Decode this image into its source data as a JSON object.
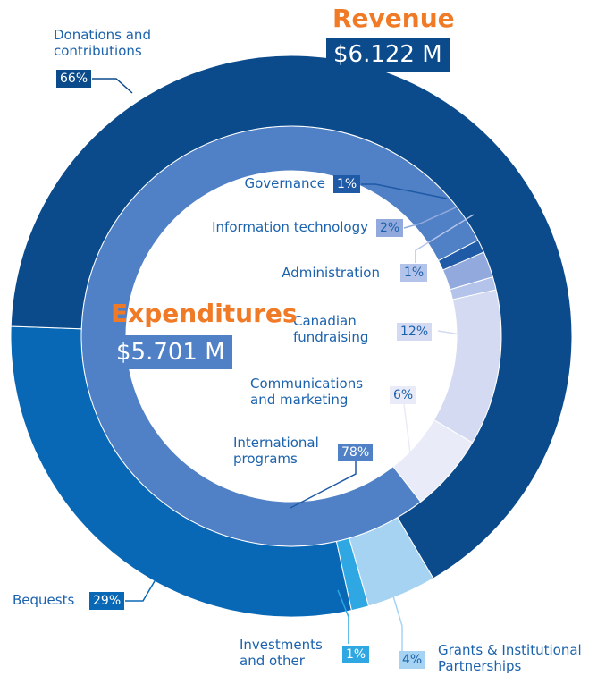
{
  "chart_data": [
    {
      "type": "donut",
      "title": "Revenue",
      "subtitle": "$6.122 M",
      "categories": [
        "Donations and contributions",
        "Grants & Institutional Partnerships",
        "Investments and other",
        "Bequests"
      ],
      "values": [
        66,
        4,
        1,
        29
      ],
      "value_labels": [
        "66%",
        "4%",
        "1%",
        "29%"
      ],
      "colors": [
        "#0b4a8b",
        "#a7d3f3",
        "#2ea7e2",
        "#0868b6"
      ]
    },
    {
      "type": "donut",
      "title": "Expenditures",
      "subtitle": "$5.701 M",
      "categories": [
        "International programs",
        "Governance",
        "Information technology",
        "Administration",
        "Canadian fundraising",
        "Communications and marketing"
      ],
      "values": [
        78,
        1,
        2,
        1,
        12,
        6
      ],
      "value_labels": [
        "78%",
        "1%",
        "2%",
        "1%",
        "12%",
        "6%"
      ],
      "colors": [
        "#5081c6",
        "#1f5aa6",
        "#92a9dd",
        "#b4c3ea",
        "#d4daf1",
        "#e9ecf8"
      ]
    }
  ]
}
